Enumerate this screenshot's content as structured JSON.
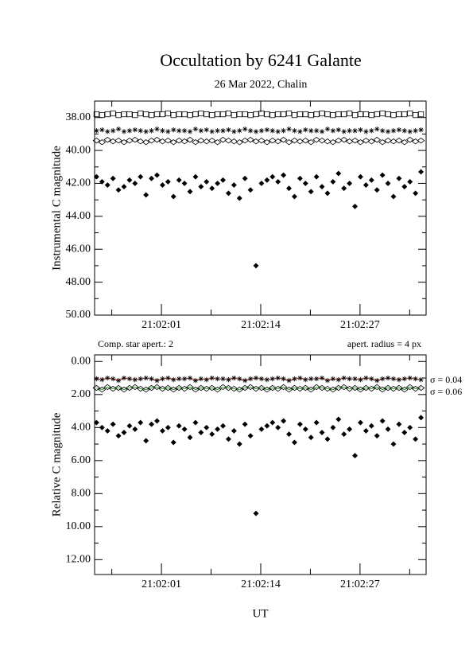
{
  "chart_data": [
    {
      "type": "scatter",
      "title": "Occultation by 6241 Galante",
      "subtitle": "26 Mar 2022, Chalin",
      "ylabel": "Instrumental C magnitude",
      "xlim": [
        -7.75,
        35.65
      ],
      "xticks": [
        {
          "value": 1,
          "label": "21:02:01"
        },
        {
          "value": 14,
          "label": "21:02:14"
        },
        {
          "value": 27,
          "label": "21:02:27"
        }
      ],
      "ylim": [
        50,
        37
      ],
      "yticks": [
        {
          "value": 38,
          "label": "38.00"
        },
        {
          "value": 40,
          "label": "40.00"
        },
        {
          "value": 42,
          "label": "42.00"
        },
        {
          "value": 44,
          "label": "44.00"
        },
        {
          "value": 46,
          "label": "46.00"
        },
        {
          "value": 48,
          "label": "48.00"
        },
        {
          "value": 50,
          "label": "50.00"
        }
      ],
      "x": [
        -7.5,
        -6.78,
        -6.06,
        -5.34,
        -4.62,
        -3.9,
        -3.18,
        -2.46,
        -1.74,
        -1.02,
        -0.3,
        0.42,
        1.14,
        1.86,
        2.58,
        3.3,
        4.02,
        4.74,
        5.46,
        6.18,
        6.9,
        7.62,
        8.34,
        9.06,
        9.78,
        10.5,
        11.22,
        11.94,
        12.66,
        13.38,
        14.1,
        14.82,
        15.54,
        16.26,
        16.98,
        17.7,
        18.42,
        19.14,
        19.86,
        20.58,
        21.3,
        22.02,
        22.74,
        23.46,
        24.18,
        24.9,
        25.62,
        26.34,
        27.06,
        27.78,
        28.5,
        29.22,
        29.94,
        30.66,
        31.38,
        32.1,
        32.82,
        33.54,
        34.26,
        34.98
      ],
      "series": [
        {
          "marker": "square",
          "color": "#000000",
          "values": [
            37.8,
            37.85,
            37.8,
            37.75,
            37.85,
            37.8,
            37.8,
            37.85,
            37.75,
            37.8,
            37.85,
            37.8,
            37.8,
            37.75,
            37.85,
            37.8,
            37.8,
            37.85,
            37.8,
            37.75,
            37.8,
            37.85,
            37.8,
            37.8,
            37.75,
            37.85,
            37.8,
            37.8,
            37.85,
            37.8,
            37.75,
            37.8,
            37.85,
            37.8,
            37.8,
            37.75,
            37.85,
            37.8,
            37.8,
            37.85,
            37.8,
            37.75,
            37.8,
            37.85,
            37.8,
            37.8,
            37.75,
            37.85,
            37.8,
            37.8,
            37.85,
            37.8,
            37.75,
            37.8,
            37.85,
            37.8,
            37.8,
            37.75,
            37.85,
            37.8
          ]
        },
        {
          "marker": "star",
          "color": "#000000",
          "values": [
            38.8,
            38.75,
            38.85,
            38.8,
            38.7,
            38.85,
            38.8,
            38.75,
            38.8,
            38.85,
            38.8,
            38.7,
            38.8,
            38.85,
            38.75,
            38.8,
            38.8,
            38.85,
            38.7,
            38.8,
            38.75,
            38.85,
            38.8,
            38.8,
            38.75,
            38.85,
            38.8,
            38.7,
            38.8,
            38.85,
            38.8,
            38.75,
            38.8,
            38.85,
            38.8,
            38.7,
            38.8,
            38.85,
            38.75,
            38.8,
            38.8,
            38.85,
            38.7,
            38.8,
            38.75,
            38.85,
            38.8,
            38.8,
            38.75,
            38.85,
            38.8,
            38.7,
            38.8,
            38.85,
            38.8,
            38.75,
            38.8,
            38.85,
            38.8,
            38.75
          ]
        },
        {
          "marker": "diamond",
          "color": "#000000",
          "values": [
            39.4,
            39.5,
            39.35,
            39.45,
            39.4,
            39.5,
            39.4,
            39.35,
            39.45,
            39.5,
            39.4,
            39.35,
            39.45,
            39.4,
            39.5,
            39.4,
            39.45,
            39.35,
            39.5,
            39.4,
            39.45,
            39.4,
            39.5,
            39.35,
            39.4,
            39.45,
            39.5,
            39.4,
            39.35,
            39.45,
            39.4,
            39.5,
            39.4,
            39.45,
            39.35,
            39.5,
            39.4,
            39.45,
            39.4,
            39.5,
            39.35,
            39.4,
            39.45,
            39.5,
            39.4,
            39.35,
            39.45,
            39.4,
            39.5,
            39.4,
            39.45,
            39.35,
            39.5,
            39.4,
            39.45,
            39.4,
            39.5,
            39.35,
            39.45,
            39.4
          ]
        },
        {
          "marker": "filled-diamond",
          "color": "#000000",
          "values": [
            41.6,
            41.9,
            42.1,
            41.7,
            42.4,
            42.2,
            41.8,
            42.0,
            41.6,
            42.7,
            41.7,
            41.5,
            42.1,
            41.9,
            42.8,
            41.8,
            42.0,
            42.5,
            41.6,
            42.2,
            41.9,
            42.3,
            42.0,
            41.8,
            42.6,
            42.1,
            42.9,
            41.7,
            42.4,
            47.0,
            42.0,
            41.8,
            41.6,
            41.9,
            41.5,
            42.3,
            42.8,
            41.7,
            42.0,
            42.5,
            41.6,
            42.2,
            42.6,
            41.9,
            41.4,
            42.3,
            42.0,
            43.4,
            41.6,
            42.1,
            41.8,
            42.4,
            41.5,
            42.0,
            42.8,
            41.7,
            42.2,
            41.9,
            42.6,
            41.3
          ]
        }
      ]
    },
    {
      "type": "scatter",
      "ylabel": "Relative C magnitude",
      "xlabel": "UT",
      "annotations": [
        "Comp. star apert.: 2",
        "apert. radius = 4 px",
        "σ = 0.04",
        "σ = 0.06"
      ],
      "xlim": [
        -7.75,
        35.65
      ],
      "xticks": [
        {
          "value": 1,
          "label": "21:02:01"
        },
        {
          "value": 14,
          "label": "21:02:14"
        },
        {
          "value": 27,
          "label": "21:02:27"
        }
      ],
      "ylim": [
        12.9,
        -0.4
      ],
      "yticks": [
        {
          "value": 0,
          "label": "0.00"
        },
        {
          "value": 2,
          "label": "2.00"
        },
        {
          "value": 4,
          "label": "4.00"
        },
        {
          "value": 6,
          "label": "6.00"
        },
        {
          "value": 8,
          "label": "8.00"
        },
        {
          "value": 10,
          "label": "10.00"
        },
        {
          "value": 12,
          "label": "12.00"
        }
      ],
      "x": [
        -7.5,
        -6.78,
        -6.06,
        -5.34,
        -4.62,
        -3.9,
        -3.18,
        -2.46,
        -1.74,
        -1.02,
        -0.3,
        0.42,
        1.14,
        1.86,
        2.58,
        3.3,
        4.02,
        4.74,
        5.46,
        6.18,
        6.9,
        7.62,
        8.34,
        9.06,
        9.78,
        10.5,
        11.22,
        11.94,
        12.66,
        13.38,
        14.1,
        14.82,
        15.54,
        16.26,
        16.98,
        17.7,
        18.42,
        19.14,
        19.86,
        20.58,
        21.3,
        22.02,
        22.74,
        23.46,
        24.18,
        24.9,
        25.62,
        26.34,
        27.06,
        27.78,
        28.5,
        29.22,
        29.94,
        30.66,
        31.38,
        32.1,
        32.82,
        33.54,
        34.26,
        34.98
      ],
      "series": [
        {
          "marker": "star",
          "color": "#000000",
          "line_color": "#c03030",
          "values": [
            1.05,
            1.1,
            1.0,
            1.05,
            1.15,
            1.0,
            1.05,
            1.1,
            1.05,
            1.0,
            1.05,
            1.15,
            1.05,
            1.0,
            1.1,
            1.05,
            1.05,
            1.0,
            1.15,
            1.05,
            1.1,
            1.0,
            1.05,
            1.05,
            1.1,
            1.0,
            1.05,
            1.15,
            1.05,
            1.0,
            1.05,
            1.1,
            1.05,
            1.0,
            1.05,
            1.15,
            1.05,
            1.0,
            1.1,
            1.05,
            1.05,
            1.0,
            1.15,
            1.05,
            1.1,
            1.0,
            1.05,
            1.05,
            1.1,
            1.0,
            1.05,
            1.15,
            1.05,
            1.0,
            1.05,
            1.1,
            1.05,
            1.0,
            1.05,
            1.1
          ]
        },
        {
          "marker": "diamond",
          "color": "#000000",
          "line_color": "#2e9a2e",
          "values": [
            1.6,
            1.7,
            1.55,
            1.65,
            1.6,
            1.7,
            1.6,
            1.55,
            1.65,
            1.7,
            1.6,
            1.55,
            1.65,
            1.6,
            1.7,
            1.6,
            1.65,
            1.55,
            1.7,
            1.6,
            1.65,
            1.6,
            1.7,
            1.55,
            1.6,
            1.65,
            1.7,
            1.6,
            1.55,
            1.65,
            1.6,
            1.7,
            1.6,
            1.65,
            1.55,
            1.7,
            1.6,
            1.65,
            1.6,
            1.7,
            1.55,
            1.6,
            1.65,
            1.7,
            1.6,
            1.55,
            1.65,
            1.6,
            1.7,
            1.6,
            1.65,
            1.55,
            1.7,
            1.6,
            1.65,
            1.6,
            1.7,
            1.55,
            1.65,
            1.6
          ]
        },
        {
          "marker": "filled-diamond",
          "color": "#000000",
          "values": [
            3.7,
            4.0,
            4.2,
            3.8,
            4.5,
            4.3,
            3.9,
            4.1,
            3.7,
            4.8,
            3.8,
            3.6,
            4.2,
            4.0,
            4.9,
            3.9,
            4.1,
            4.6,
            3.7,
            4.3,
            4.0,
            4.4,
            4.1,
            3.9,
            4.7,
            4.2,
            5.0,
            3.8,
            4.5,
            9.2,
            4.1,
            3.9,
            3.7,
            4.0,
            3.6,
            4.4,
            4.9,
            3.8,
            4.1,
            4.6,
            3.7,
            4.3,
            4.7,
            4.0,
            3.5,
            4.4,
            4.1,
            5.7,
            3.7,
            4.2,
            3.9,
            4.5,
            3.6,
            4.1,
            5.0,
            3.8,
            4.3,
            4.0,
            4.7,
            3.4
          ]
        }
      ]
    }
  ]
}
